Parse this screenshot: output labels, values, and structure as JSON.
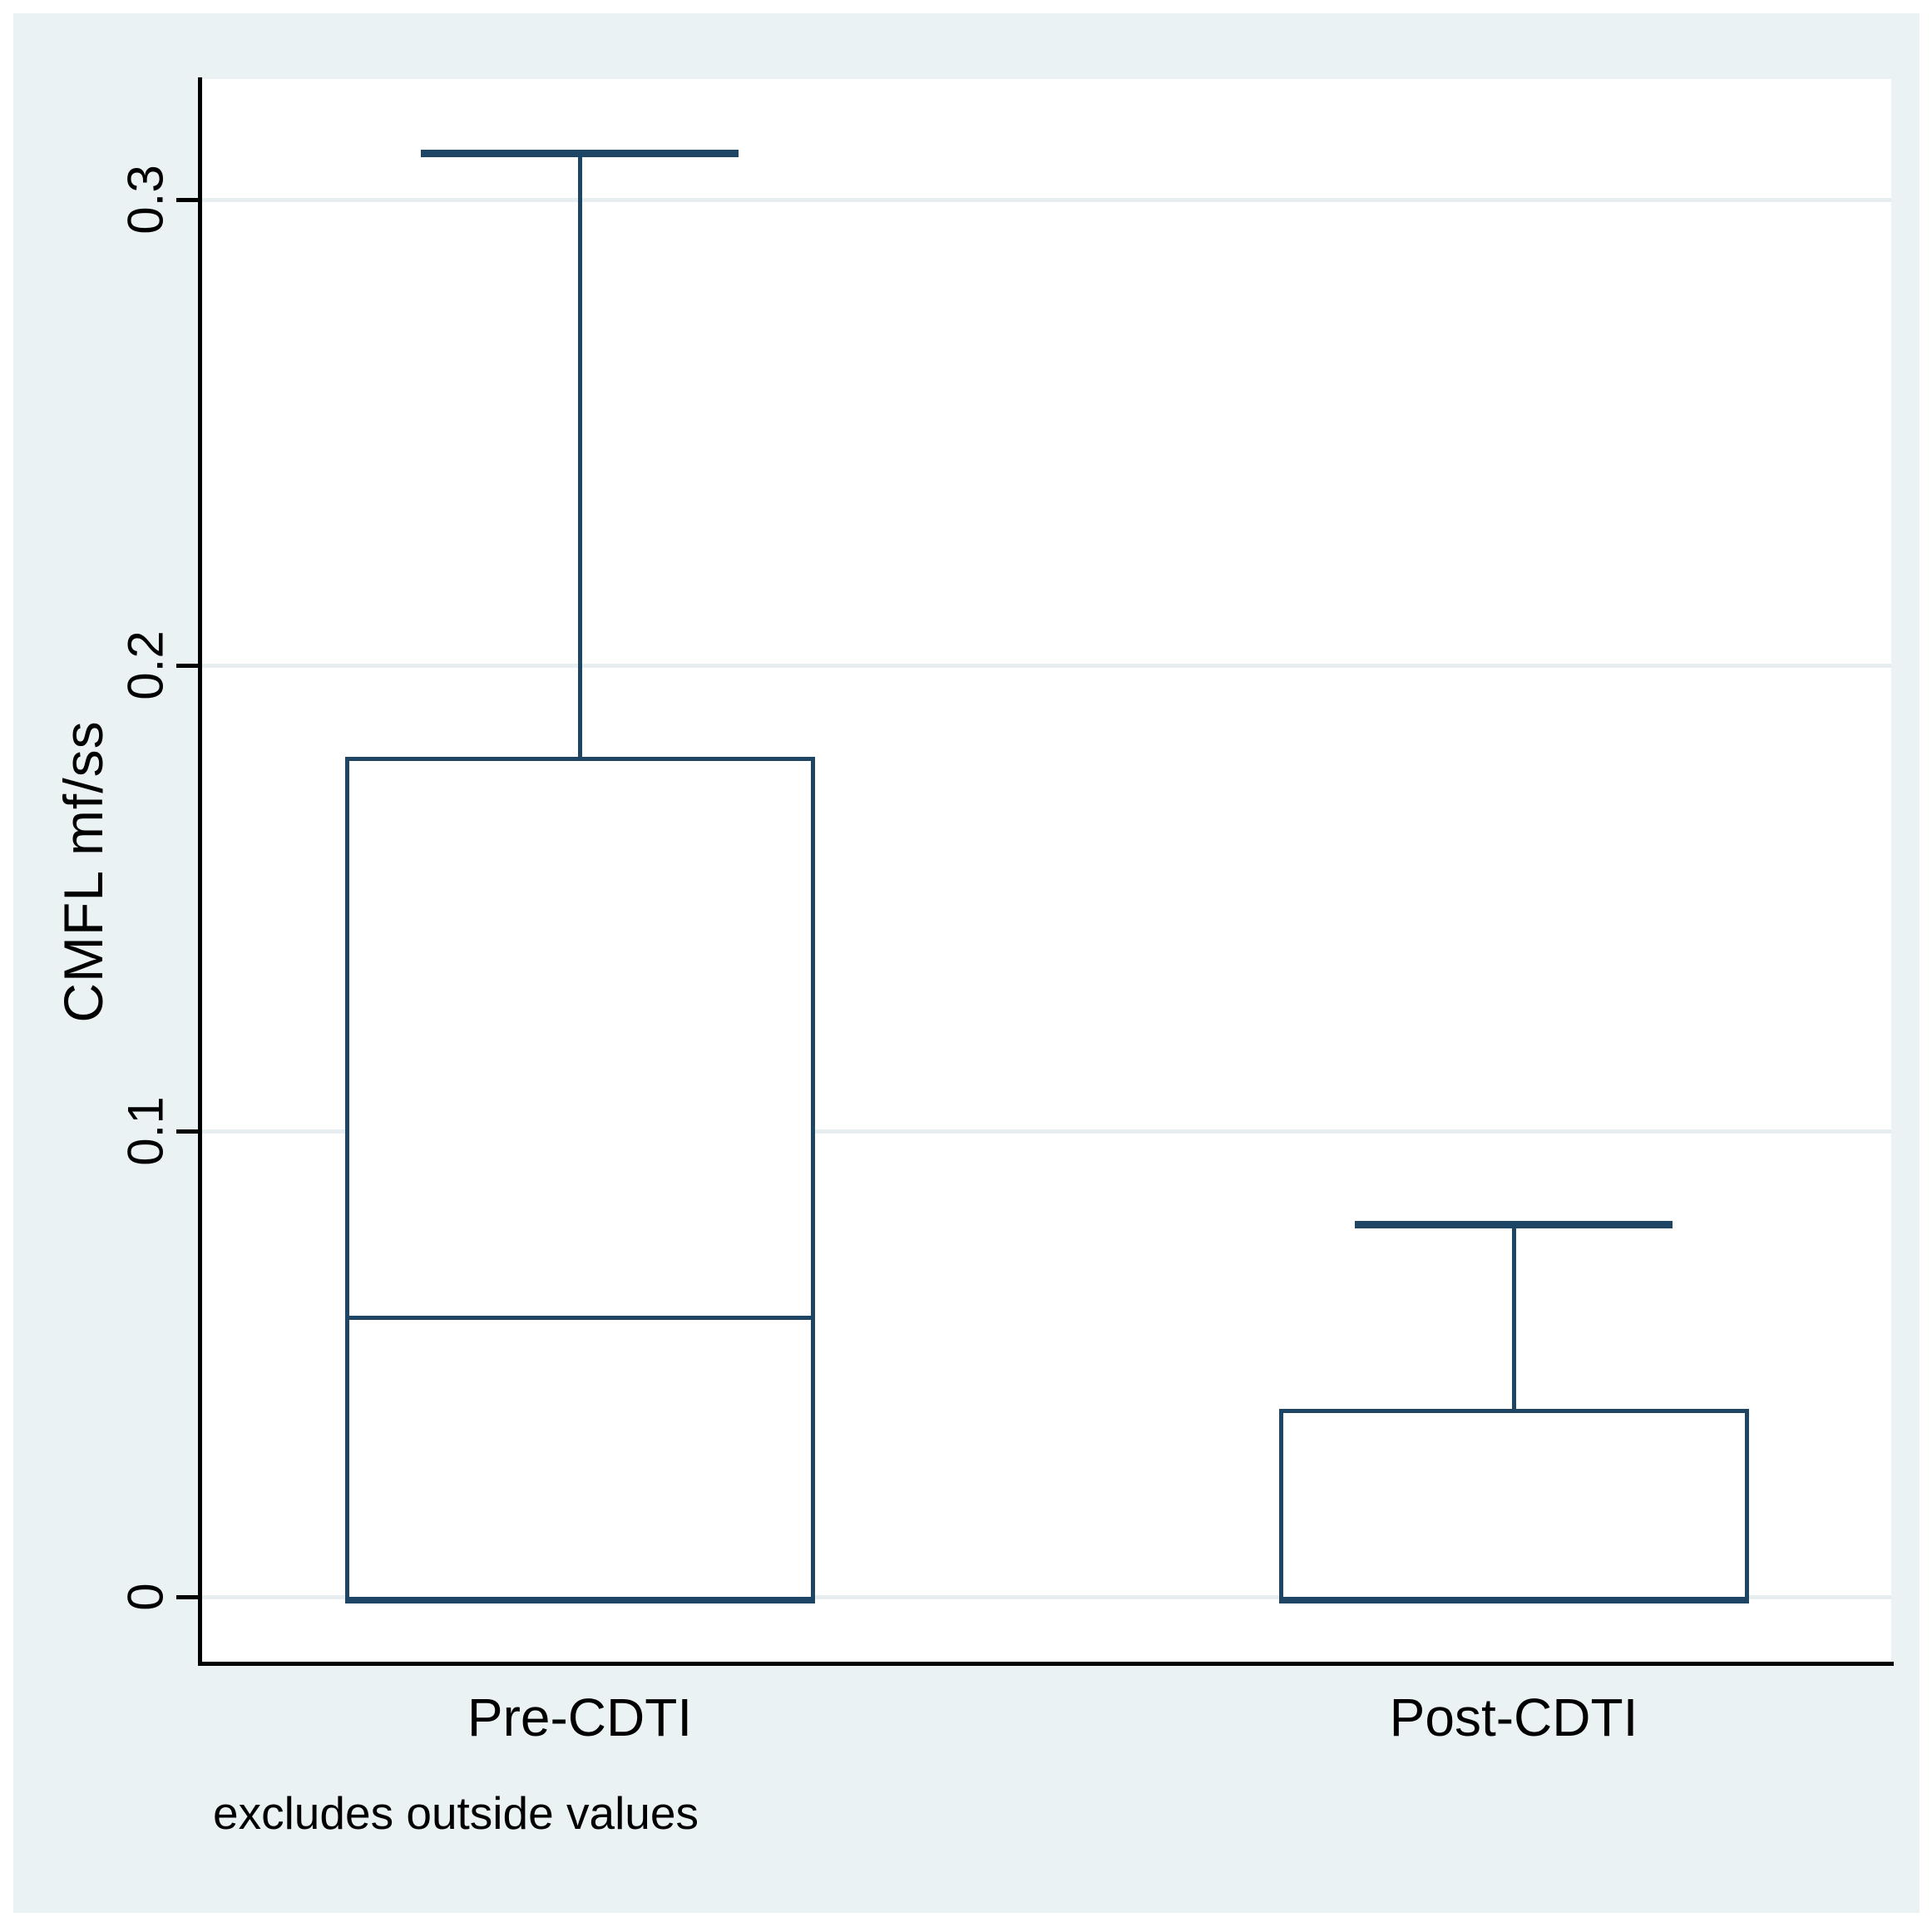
{
  "figure": {
    "note": "excludes outside values"
  },
  "chart_data": {
    "type": "box",
    "title": "",
    "xlabel": "",
    "ylabel": "CMFL mf/ss",
    "note": "excludes outside values",
    "categories": [
      "Pre-CDTI",
      "Post-CDTI"
    ],
    "yticks": [
      {
        "value": 0.0,
        "label": "0"
      },
      {
        "value": 0.1,
        "label": "0.1"
      },
      {
        "value": 0.2,
        "label": "0.2"
      },
      {
        "value": 0.3,
        "label": "0.3"
      }
    ],
    "ylim": [
      -0.014,
      0.326
    ],
    "grid": "horizontal-light",
    "legend": "none",
    "series": [
      {
        "name": "Pre-CDTI",
        "lower_whisker": 0,
        "q1": 0,
        "median": 0.06,
        "q3": 0.18,
        "upper_whisker": 0.31
      },
      {
        "name": "Post-CDTI",
        "lower_whisker": 0,
        "q1": 0,
        "median": 0,
        "q3": 0.04,
        "upper_whisker": 0.08
      }
    ],
    "colors": {
      "box_stroke": "#1f4564",
      "plot_background": "#ffffff",
      "figure_background": "#eaf2f3",
      "gridline": "#e7eeef",
      "axis": "#000000",
      "text": "#000000"
    }
  }
}
